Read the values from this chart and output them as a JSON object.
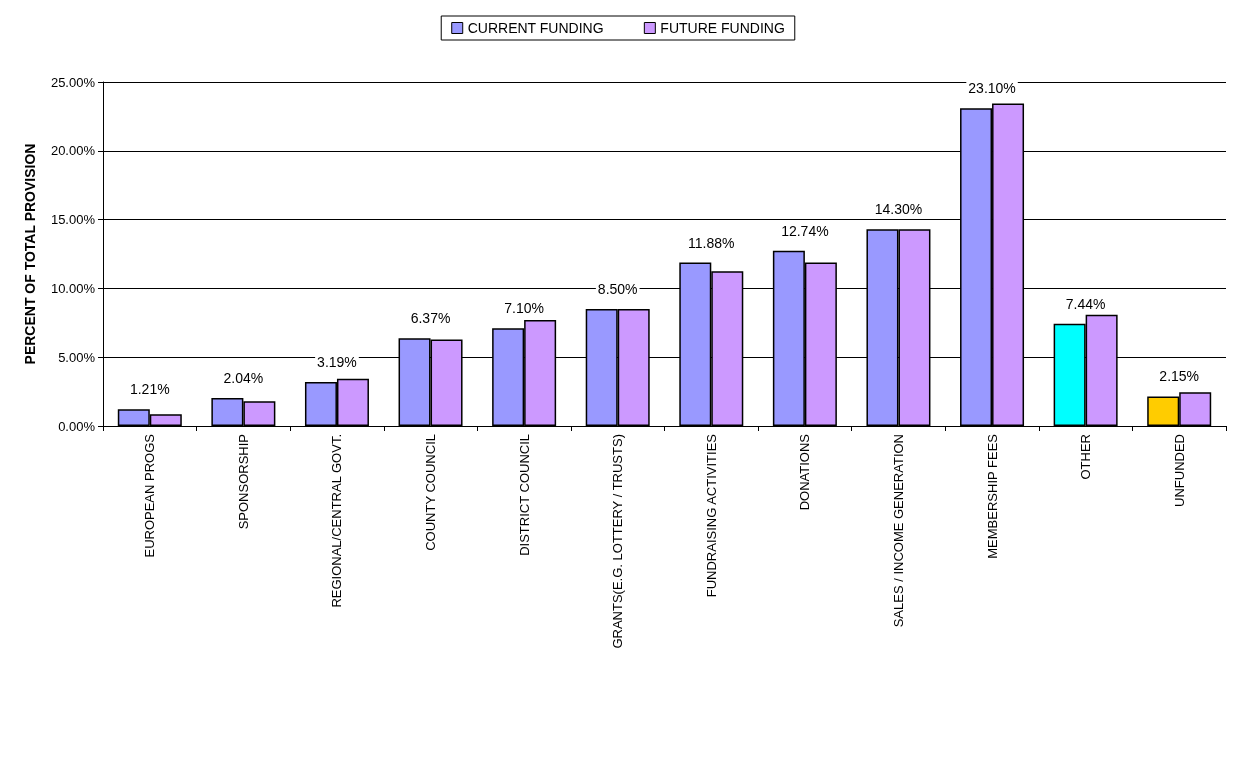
{
  "chart_data": {
    "type": "bar",
    "ylabel": "PERCENT OF TOTAL PROVISION",
    "categories": [
      "EUROPEAN PROGS",
      "SPONSORSHIP",
      "REGIONAL/CENTRAL GOVT.",
      "COUNTY COUNCIL",
      "DISTRICT COUNCIL",
      "GRANTS(E.G. LOTTERY / TRUSTS)",
      "FUNDRAISING ACTIVITIES",
      "DONATIONS",
      "SALES / INCOME GENERATION",
      "MEMBERSHIP FEES",
      "OTHER",
      "UNFUNDED"
    ],
    "series": [
      {
        "name": "CURRENT FUNDING",
        "color": "#9999ff",
        "colors": [
          "#9999ff",
          "#9999ff",
          "#9999ff",
          "#9999ff",
          "#9999ff",
          "#9999ff",
          "#9999ff",
          "#9999ff",
          "#9999ff",
          "#9999ff",
          "#00ffff",
          "#ffcc00"
        ],
        "values": [
          1.21,
          2.04,
          3.19,
          6.37,
          7.1,
          8.5,
          11.88,
          12.74,
          14.3,
          23.1,
          7.44,
          2.15
        ],
        "value_labels": [
          "1.21%",
          "2.04%",
          "3.19%",
          "6.37%",
          "7.10%",
          "8.50%",
          "11.88%",
          "12.74%",
          "14.30%",
          "23.10%",
          "7.44%",
          "2.15%"
        ]
      },
      {
        "name": "FUTURE FUNDING",
        "color": "#cc99ff",
        "values": [
          0.86,
          1.8,
          3.43,
          6.28,
          7.71,
          8.5,
          11.24,
          11.88,
          14.3,
          23.44,
          8.08,
          2.46
        ]
      }
    ],
    "ylim": [
      0,
      25
    ],
    "yticks": [
      {
        "value": 0,
        "label": "0.00%"
      },
      {
        "value": 5,
        "label": "5.00%"
      },
      {
        "value": 10,
        "label": "10.00%"
      },
      {
        "value": 15,
        "label": "15.00%"
      },
      {
        "value": 20,
        "label": "20.00%"
      },
      {
        "value": 25,
        "label": "25.00%"
      }
    ],
    "grid": "y",
    "legend": "top"
  }
}
